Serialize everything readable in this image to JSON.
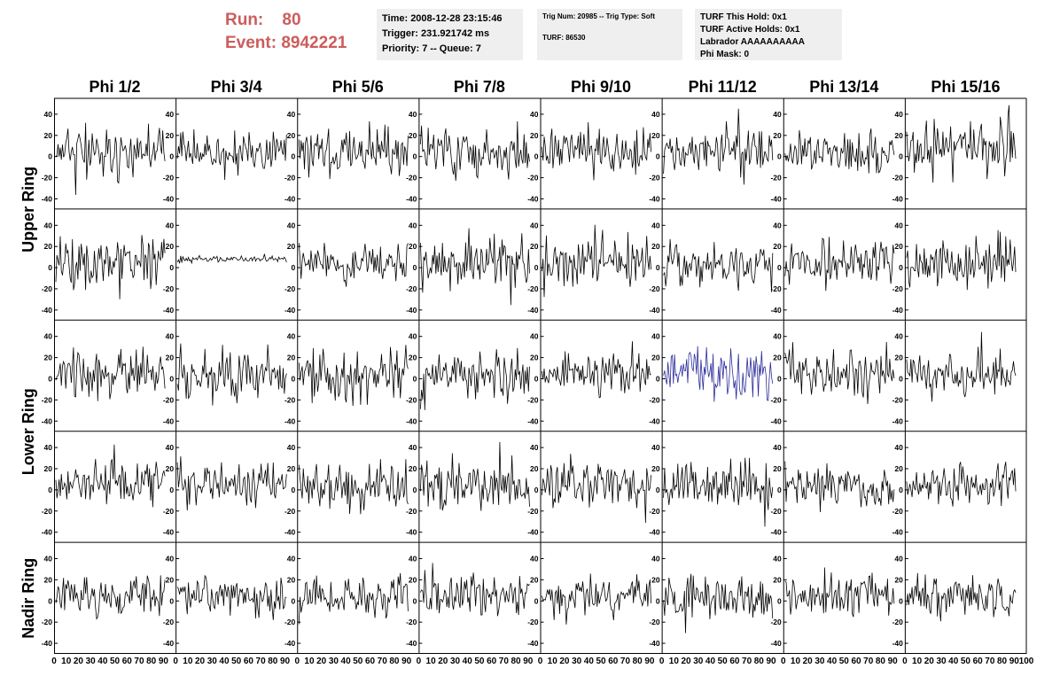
{
  "run_info": {
    "run_label": "Run:",
    "run_value": "80",
    "event_label": "Event:",
    "event_value": "8942221"
  },
  "time_box": {
    "time": "Time: 2008-12-28 23:15:46",
    "trigger": "Trigger: 231.921742 ms",
    "priority": "Priority: 7 -- Queue: 7"
  },
  "trig_box": {
    "trig": "Trig Num: 20985 -- Trig Type: Soft",
    "turf": "TURF: 86530"
  },
  "turf_box": {
    "this_hold": "TURF This Hold: 0x1",
    "active_holds": "TURF Active Holds: 0x1",
    "labrador": "Labrador AAAAAAAAAA",
    "phi_mask": "Phi Mask: 0"
  },
  "colors": {
    "trace": "#000000",
    "highlight_trace": "#2b2b9b",
    "run_text": "#cd5c5c",
    "box_bg": "#efefef"
  },
  "chart_data": {
    "type": "line",
    "columns": [
      "Phi 1/2",
      "Phi 3/4",
      "Phi 5/6",
      "Phi 7/8",
      "Phi 9/10",
      "Phi 11/12",
      "Phi 13/14",
      "Phi 15/16"
    ],
    "rings": [
      {
        "label": "Upper Ring",
        "rows": [
          0,
          1
        ]
      },
      {
        "label": "Lower Ring",
        "rows": [
          2,
          3
        ]
      },
      {
        "label": "Nadir Ring",
        "rows": [
          4
        ]
      }
    ],
    "row_count": 5,
    "xlim": [
      0,
      100
    ],
    "ylim": [
      -50,
      55
    ],
    "y_ticks": [
      -40,
      -20,
      0,
      20,
      40
    ],
    "x_ticks": [
      0,
      10,
      20,
      30,
      40,
      50,
      60,
      70,
      80,
      90,
      100
    ],
    "x_tick_labels": [
      "0",
      "10",
      "20",
      "30",
      "40",
      "50",
      "60",
      "70",
      "80",
      "90",
      "100"
    ],
    "samples_per_trace": 100,
    "grid": false,
    "traces": [
      {
        "row": 0,
        "col": 0,
        "amplitude": 11,
        "offset": 5,
        "seed": 11
      },
      {
        "row": 0,
        "col": 1,
        "amplitude": 10,
        "offset": 5,
        "seed": 12
      },
      {
        "row": 0,
        "col": 2,
        "amplitude": 11,
        "offset": 5,
        "seed": 13
      },
      {
        "row": 0,
        "col": 3,
        "amplitude": 11,
        "offset": 4,
        "seed": 14
      },
      {
        "row": 0,
        "col": 4,
        "amplitude": 11,
        "offset": 5,
        "seed": 15
      },
      {
        "row": 0,
        "col": 5,
        "amplitude": 11,
        "offset": 5,
        "seed": 16
      },
      {
        "row": 0,
        "col": 6,
        "amplitude": 9,
        "offset": 5,
        "seed": 17
      },
      {
        "row": 0,
        "col": 7,
        "amplitude": 12,
        "offset": 6,
        "seed": 18
      },
      {
        "row": 1,
        "col": 0,
        "amplitude": 12,
        "offset": 4,
        "seed": 21
      },
      {
        "row": 1,
        "col": 1,
        "amplitude": 1.5,
        "offset": 8,
        "seed": 22
      },
      {
        "row": 1,
        "col": 2,
        "amplitude": 10,
        "offset": 4,
        "seed": 23
      },
      {
        "row": 1,
        "col": 3,
        "amplitude": 12,
        "offset": 4,
        "seed": 24
      },
      {
        "row": 1,
        "col": 4,
        "amplitude": 12,
        "offset": 5,
        "seed": 25
      },
      {
        "row": 1,
        "col": 5,
        "amplitude": 11,
        "offset": 4,
        "seed": 26
      },
      {
        "row": 1,
        "col": 6,
        "amplitude": 10,
        "offset": 5,
        "seed": 27
      },
      {
        "row": 1,
        "col": 7,
        "amplitude": 11,
        "offset": 5,
        "seed": 28
      },
      {
        "row": 2,
        "col": 0,
        "amplitude": 12,
        "offset": 5,
        "seed": 31
      },
      {
        "row": 2,
        "col": 1,
        "amplitude": 12,
        "offset": 5,
        "seed": 32
      },
      {
        "row": 2,
        "col": 2,
        "amplitude": 13,
        "offset": 4,
        "seed": 33
      },
      {
        "row": 2,
        "col": 3,
        "amplitude": 11,
        "offset": 5,
        "seed": 34
      },
      {
        "row": 2,
        "col": 4,
        "amplitude": 9,
        "offset": 5,
        "seed": 35
      },
      {
        "row": 2,
        "col": 5,
        "amplitude": 13,
        "offset": 4,
        "seed": 36,
        "highlight": true
      },
      {
        "row": 2,
        "col": 6,
        "amplitude": 12,
        "offset": 5,
        "seed": 37
      },
      {
        "row": 2,
        "col": 7,
        "amplitude": 10,
        "offset": 5,
        "seed": 38
      },
      {
        "row": 3,
        "col": 0,
        "amplitude": 11,
        "offset": 5,
        "seed": 41
      },
      {
        "row": 3,
        "col": 1,
        "amplitude": 10,
        "offset": 5,
        "seed": 42
      },
      {
        "row": 3,
        "col": 2,
        "amplitude": 11,
        "offset": 4,
        "seed": 43
      },
      {
        "row": 3,
        "col": 3,
        "amplitude": 12,
        "offset": 5,
        "seed": 44
      },
      {
        "row": 3,
        "col": 4,
        "amplitude": 12,
        "offset": 5,
        "seed": 45
      },
      {
        "row": 3,
        "col": 5,
        "amplitude": 11,
        "offset": 5,
        "seed": 46
      },
      {
        "row": 3,
        "col": 6,
        "amplitude": 9,
        "offset": 4,
        "seed": 47
      },
      {
        "row": 3,
        "col": 7,
        "amplitude": 12,
        "offset": 5,
        "seed": 48
      },
      {
        "row": 4,
        "col": 0,
        "amplitude": 9,
        "offset": 4,
        "seed": 51
      },
      {
        "row": 4,
        "col": 1,
        "amplitude": 9,
        "offset": 4,
        "seed": 52
      },
      {
        "row": 4,
        "col": 2,
        "amplitude": 9,
        "offset": 4,
        "seed": 53
      },
      {
        "row": 4,
        "col": 3,
        "amplitude": 10,
        "offset": 4,
        "seed": 54
      },
      {
        "row": 4,
        "col": 4,
        "amplitude": 9,
        "offset": 4,
        "seed": 55
      },
      {
        "row": 4,
        "col": 5,
        "amplitude": 11,
        "offset": 3,
        "seed": 56
      },
      {
        "row": 4,
        "col": 6,
        "amplitude": 10,
        "offset": 4,
        "seed": 57
      },
      {
        "row": 4,
        "col": 7,
        "amplitude": 10,
        "offset": 4,
        "seed": 58
      }
    ]
  }
}
